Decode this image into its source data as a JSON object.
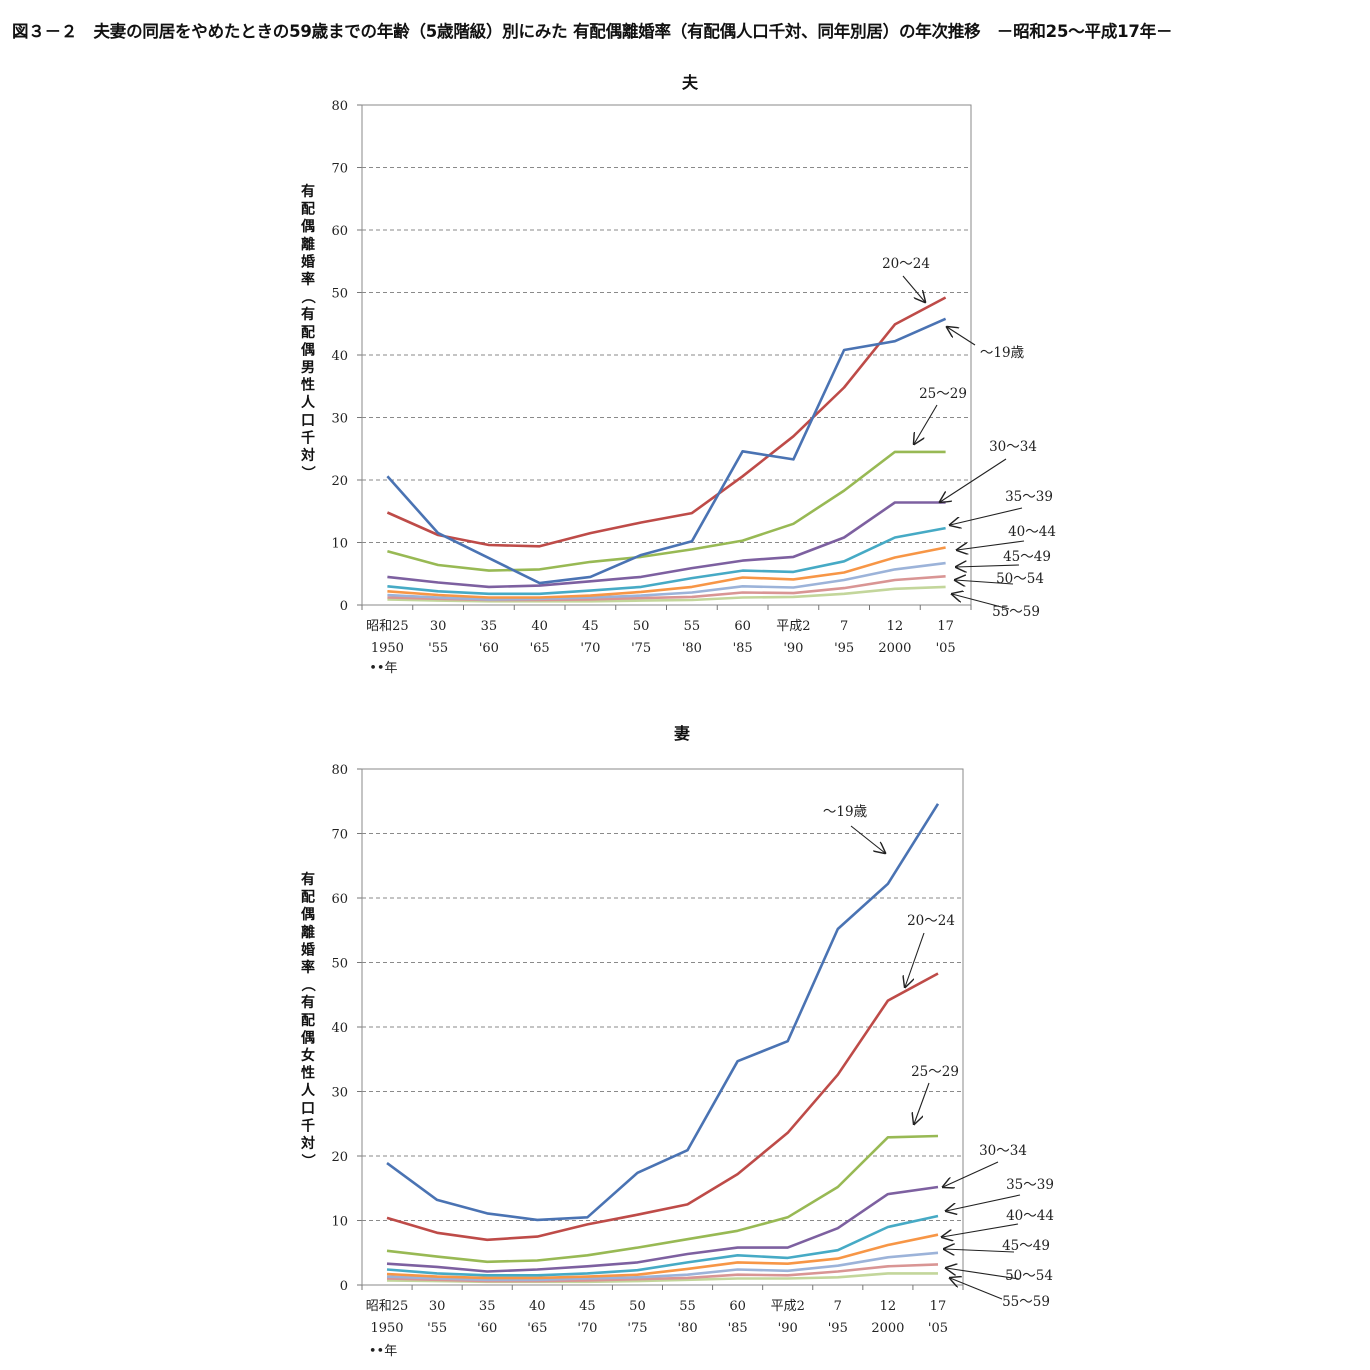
{
  "page_title": "図３－２　夫妻の同居をやめたときの59歳までの年齢（5歳階級）別にみた 有配偶離婚率（有配偶人口千対、同年別居）の年次推移　－昭和25～平成17年－",
  "colors": {
    "~19": "#4a73b3",
    "20~24": "#be4b48",
    "25~29": "#98b954",
    "30~34": "#7d60a0",
    "35~39": "#46aac5",
    "40~44": "#f79646",
    "45~49": "#9cb3d9",
    "50~54": "#d99594",
    "55~59": "#c3d69b"
  },
  "chart_data": [
    {
      "type": "line",
      "title": "夫",
      "ylabel": "有配偶離婚率（有配偶男性人口千対）",
      "ylim": [
        0,
        80
      ],
      "yticks": [
        "0",
        "10",
        "20",
        "30",
        "40",
        "50",
        "60",
        "70",
        "80"
      ],
      "grid": true,
      "categories": [
        "1950",
        "1955",
        "1960",
        "1965",
        "1970",
        "1975",
        "1980",
        "1985",
        "1990",
        "1995",
        "2000",
        "2005"
      ],
      "x_tick_labels": [
        [
          "昭和25",
          "1950"
        ],
        [
          "30",
          "'55"
        ],
        [
          "35",
          "'60"
        ],
        [
          "40",
          "'65"
        ],
        [
          "45",
          "'70"
        ],
        [
          "50",
          "'75"
        ],
        [
          "55",
          "'80"
        ],
        [
          "60",
          "'85"
        ],
        [
          "平成2",
          "'90"
        ],
        [
          "7",
          "'95"
        ],
        [
          "12",
          "2000"
        ],
        [
          "17",
          "'05"
        ]
      ],
      "x_unit": "年",
      "series": [
        {
          "name": "~19",
          "label": "～19歳",
          "values": [
            20.6,
            11.5,
            7.5,
            3.5,
            4.5,
            8.0,
            10.2,
            24.6,
            23.3,
            40.8,
            42.2,
            45.8
          ]
        },
        {
          "name": "20~24",
          "label": "20～24",
          "values": [
            14.8,
            11.2,
            9.6,
            9.4,
            11.5,
            13.2,
            14.7,
            20.6,
            27.0,
            34.8,
            44.9,
            49.2
          ]
        },
        {
          "name": "25~29",
          "label": "25～29",
          "values": [
            8.6,
            6.4,
            5.5,
            5.7,
            6.9,
            7.7,
            8.9,
            10.3,
            13.0,
            18.3,
            24.5,
            24.5
          ]
        },
        {
          "name": "30~34",
          "label": "30～34",
          "values": [
            4.5,
            3.6,
            2.9,
            3.1,
            3.8,
            4.5,
            5.9,
            7.1,
            7.7,
            10.8,
            16.4,
            16.4
          ]
        },
        {
          "name": "35~39",
          "label": "35～39",
          "values": [
            3.0,
            2.2,
            1.8,
            1.8,
            2.3,
            2.9,
            4.3,
            5.5,
            5.3,
            7.0,
            10.8,
            12.3
          ]
        },
        {
          "name": "40~44",
          "label": "40～44",
          "values": [
            2.2,
            1.6,
            1.2,
            1.2,
            1.5,
            2.1,
            2.9,
            4.4,
            4.1,
            5.2,
            7.6,
            9.2
          ]
        },
        {
          "name": "45~49",
          "label": "45～49",
          "values": [
            1.6,
            1.2,
            0.9,
            1.0,
            1.2,
            1.5,
            2.0,
            3.0,
            2.8,
            4.0,
            5.7,
            6.7
          ]
        },
        {
          "name": "50~54",
          "label": "50～54",
          "values": [
            1.2,
            1.0,
            0.8,
            0.8,
            0.9,
            1.1,
            1.3,
            2.0,
            1.9,
            2.7,
            4.0,
            4.6
          ]
        },
        {
          "name": "55~59",
          "label": "55～59",
          "values": [
            0.9,
            0.7,
            0.6,
            0.6,
            0.6,
            0.7,
            0.8,
            1.2,
            1.3,
            1.8,
            2.6,
            2.9
          ]
        }
      ]
    },
    {
      "type": "line",
      "title": "妻",
      "ylabel": "有配偶離婚率（有配偶女性人口千対）",
      "ylim": [
        0,
        80
      ],
      "yticks": [
        "0",
        "10",
        "20",
        "30",
        "40",
        "50",
        "60",
        "70",
        "80"
      ],
      "grid": true,
      "categories": [
        "1950",
        "1955",
        "1960",
        "1965",
        "1970",
        "1975",
        "1980",
        "1985",
        "1990",
        "1995",
        "2000",
        "2005"
      ],
      "x_tick_labels": [
        [
          "昭和25",
          "1950"
        ],
        [
          "30",
          "'55"
        ],
        [
          "35",
          "'60"
        ],
        [
          "40",
          "'65"
        ],
        [
          "45",
          "'70"
        ],
        [
          "50",
          "'75"
        ],
        [
          "55",
          "'80"
        ],
        [
          "60",
          "'85"
        ],
        [
          "平成2",
          "'90"
        ],
        [
          "7",
          "'95"
        ],
        [
          "12",
          "2000"
        ],
        [
          "17",
          "'05"
        ]
      ],
      "x_unit": "年",
      "series": [
        {
          "name": "~19",
          "label": "～19歳",
          "values": [
            18.9,
            13.2,
            11.1,
            10.1,
            10.5,
            17.4,
            20.9,
            34.7,
            37.8,
            55.2,
            62.2,
            74.6
          ]
        },
        {
          "name": "20~24",
          "label": "20～24",
          "values": [
            10.4,
            8.1,
            7.0,
            7.5,
            9.4,
            10.9,
            12.5,
            17.2,
            23.6,
            32.6,
            44.1,
            48.3
          ]
        },
        {
          "name": "25~29",
          "label": "25～29",
          "values": [
            5.3,
            4.4,
            3.6,
            3.8,
            4.6,
            5.8,
            7.1,
            8.4,
            10.5,
            15.2,
            22.9,
            23.1
          ]
        },
        {
          "name": "30~34",
          "label": "30～34",
          "values": [
            3.3,
            2.8,
            2.1,
            2.4,
            2.9,
            3.5,
            4.8,
            5.8,
            5.8,
            8.8,
            14.1,
            15.2
          ]
        },
        {
          "name": "35~39",
          "label": "35～39",
          "values": [
            2.4,
            1.8,
            1.5,
            1.5,
            1.8,
            2.3,
            3.5,
            4.6,
            4.2,
            5.4,
            9.0,
            10.7
          ]
        },
        {
          "name": "40~44",
          "label": "40～44",
          "values": [
            1.7,
            1.3,
            1.1,
            1.1,
            1.3,
            1.6,
            2.5,
            3.5,
            3.3,
            4.1,
            6.2,
            7.8
          ]
        },
        {
          "name": "45~49",
          "label": "45～49",
          "values": [
            1.3,
            1.0,
            0.8,
            0.8,
            1.0,
            1.2,
            1.6,
            2.4,
            2.2,
            3.0,
            4.3,
            5.0
          ]
        },
        {
          "name": "50~54",
          "label": "50～54",
          "values": [
            1.0,
            0.8,
            0.6,
            0.6,
            0.7,
            0.9,
            1.1,
            1.6,
            1.5,
            2.1,
            2.9,
            3.2
          ]
        },
        {
          "name": "55~59",
          "label": "55～59",
          "values": [
            0.7,
            0.6,
            0.5,
            0.5,
            0.5,
            0.6,
            0.8,
            1.0,
            1.0,
            1.2,
            1.8,
            1.8
          ]
        }
      ]
    }
  ]
}
